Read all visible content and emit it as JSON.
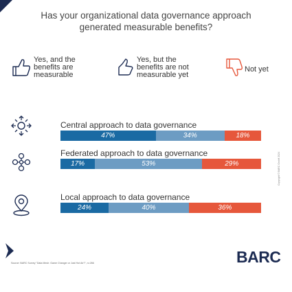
{
  "title_line1": "Has your organizational data governance approach",
  "title_line2": "generated measurable benefits?",
  "legend": [
    {
      "label": "Yes, and the\nbenefits are\nmeasurable",
      "icon": "thumbs-up-icon"
    },
    {
      "label": "Yes, but the\nbenefits are not\nmeasurable yet",
      "icon": "thumbs-up-outline-icon"
    },
    {
      "label": "Not yet",
      "icon": "thumbs-down-icon"
    }
  ],
  "colors": {
    "measurable": "#1a6aa3",
    "not_measurable_yet": "#6d9cc3",
    "not_yet": "#e6573b",
    "icon": "#1c2b52"
  },
  "rows": [
    {
      "label": "Central approach to data governance",
      "icon": "central-nodes-icon"
    },
    {
      "label": "Federated approach to data governance",
      "icon": "federated-network-icon"
    },
    {
      "label": "Local approach to data governance",
      "icon": "location-pin-icon"
    }
  ],
  "chart_data": {
    "type": "bar",
    "stacked": true,
    "orientation": "horizontal",
    "title": "Has your organizational data governance approach generated measurable benefits?",
    "categories": [
      "Central approach to data governance",
      "Federated approach to data governance",
      "Local approach to data governance"
    ],
    "series": [
      {
        "name": "Yes, and the benefits are measurable",
        "values": [
          47,
          17,
          24
        ],
        "labels": [
          "47%",
          "17%",
          "24%"
        ]
      },
      {
        "name": "Yes, but the benefits are not measurable yet",
        "values": [
          34,
          53,
          40
        ],
        "labels": [
          "34%",
          "53%",
          "40%"
        ]
      },
      {
        "name": "Not yet",
        "values": [
          18,
          29,
          36
        ],
        "labels": [
          "18%",
          "29%",
          "36%"
        ]
      }
    ],
    "xlim": [
      0,
      100
    ]
  },
  "source": "Source: BARC Survey \"Data Mesh: Game Changer or Just Hot Air?\", n=266",
  "logo": "BARC",
  "copyright": "Copyright © BARC GmbH 2024"
}
